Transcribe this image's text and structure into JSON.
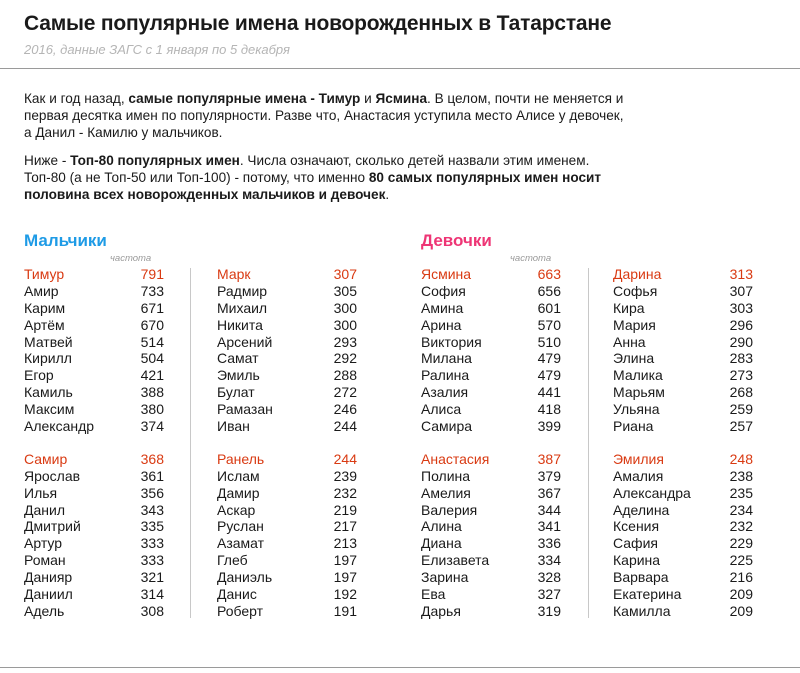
{
  "header": {
    "title": "Самые популярные имена новорожденных в Татарстане",
    "subtitle": "2016, данные ЗАГС с 1 января по 5 декабря"
  },
  "intro": {
    "p1_a": "Как и год назад, ",
    "p1_b": "самые популярные имена - Тимур",
    "p1_c": " и ",
    "p1_d": "Ясмина",
    "p1_e": ". В целом, почти не меняется и первая десятка имен по популярности. Разве что, Анастасия уступила место Алисе у девочек, а Данил -  Камилю у мальчиков.",
    "p2_a": "Ниже - ",
    "p2_b": "Топ-80 популярных имен",
    "p2_c": ". Числа означают, сколько детей назвали этим именем. Топ-80 (а не Топ-50 или Топ-100) - потому, что именно ",
    "p2_d": "80 самых популярных имен носит половина всех новорожденных мальчиков и девочек",
    "p2_e": "."
  },
  "sections": {
    "boys_title": "Мальчики",
    "girls_title": "Девочки",
    "freq_label": "частота"
  },
  "colors": {
    "boys": "#1e9be6",
    "girls": "#ee3575",
    "lead": "#d93a12"
  },
  "boys": {
    "col1": [
      [
        {
          "name": "Тимур",
          "count": "791"
        },
        {
          "name": "Амир",
          "count": "733"
        },
        {
          "name": "Карим",
          "count": "671"
        },
        {
          "name": "Артём",
          "count": "670"
        },
        {
          "name": "Матвей",
          "count": "514"
        },
        {
          "name": "Кирилл",
          "count": "504"
        },
        {
          "name": "Егор",
          "count": "421"
        },
        {
          "name": "Камиль",
          "count": "388"
        },
        {
          "name": "Максим",
          "count": "380"
        },
        {
          "name": "Александр",
          "count": "374"
        }
      ],
      [
        {
          "name": "Самир",
          "count": "368"
        },
        {
          "name": "Ярослав",
          "count": "361"
        },
        {
          "name": "Илья",
          "count": "356"
        },
        {
          "name": "Данил",
          "count": "343"
        },
        {
          "name": "Дмитрий",
          "count": "335"
        },
        {
          "name": "Артур",
          "count": "333"
        },
        {
          "name": "Роман",
          "count": "333"
        },
        {
          "name": "Данияр",
          "count": "321"
        },
        {
          "name": "Даниил",
          "count": "314"
        },
        {
          "name": "Адель",
          "count": "308"
        }
      ]
    ],
    "col2": [
      [
        {
          "name": "Марк",
          "count": "307"
        },
        {
          "name": "Радмир",
          "count": "305"
        },
        {
          "name": "Михаил",
          "count": "300"
        },
        {
          "name": "Никита",
          "count": "300"
        },
        {
          "name": "Арсений",
          "count": "293"
        },
        {
          "name": "Самат",
          "count": "292"
        },
        {
          "name": "Эмиль",
          "count": "288"
        },
        {
          "name": "Булат",
          "count": "272"
        },
        {
          "name": "Рамазан",
          "count": "246"
        },
        {
          "name": "Иван",
          "count": "244"
        }
      ],
      [
        {
          "name": "Ранель",
          "count": "244"
        },
        {
          "name": "Ислам",
          "count": "239"
        },
        {
          "name": "Дамир",
          "count": "232"
        },
        {
          "name": "Аскар",
          "count": "219"
        },
        {
          "name": "Руслан",
          "count": "217"
        },
        {
          "name": "Азамат",
          "count": "213"
        },
        {
          "name": "Глеб",
          "count": "197"
        },
        {
          "name": "Даниэль",
          "count": "197"
        },
        {
          "name": "Данис",
          "count": "192"
        },
        {
          "name": "Роберт",
          "count": "191"
        }
      ]
    ]
  },
  "girls": {
    "col1": [
      [
        {
          "name": "Ясмина",
          "count": "663"
        },
        {
          "name": "София",
          "count": "656"
        },
        {
          "name": "Амина",
          "count": "601"
        },
        {
          "name": "Арина",
          "count": "570"
        },
        {
          "name": "Виктория",
          "count": "510"
        },
        {
          "name": "Милана",
          "count": "479"
        },
        {
          "name": "Ралина",
          "count": "479"
        },
        {
          "name": "Азалия",
          "count": "441"
        },
        {
          "name": "Алиса",
          "count": "418"
        },
        {
          "name": "Самира",
          "count": "399"
        }
      ],
      [
        {
          "name": "Анастасия",
          "count": "387"
        },
        {
          "name": "Полина",
          "count": "379"
        },
        {
          "name": "Амелия",
          "count": "367"
        },
        {
          "name": "Валерия",
          "count": "344"
        },
        {
          "name": "Алина",
          "count": "341"
        },
        {
          "name": "Диана",
          "count": "336"
        },
        {
          "name": "Елизавета",
          "count": "334"
        },
        {
          "name": "Зарина",
          "count": "328"
        },
        {
          "name": "Ева",
          "count": "327"
        },
        {
          "name": "Дарья",
          "count": "319"
        }
      ]
    ],
    "col2": [
      [
        {
          "name": "Дарина",
          "count": "313"
        },
        {
          "name": "Софья",
          "count": "307"
        },
        {
          "name": "Кира",
          "count": "303"
        },
        {
          "name": "Мария",
          "count": "296"
        },
        {
          "name": "Анна",
          "count": "290"
        },
        {
          "name": "Элина",
          "count": "283"
        },
        {
          "name": "Малика",
          "count": "273"
        },
        {
          "name": "Марьям",
          "count": "268"
        },
        {
          "name": "Ульяна",
          "count": "259"
        },
        {
          "name": "Риана",
          "count": "257"
        }
      ],
      [
        {
          "name": "Эмилия",
          "count": "248"
        },
        {
          "name": "Амалия",
          "count": "238"
        },
        {
          "name": "Александра",
          "count": "235"
        },
        {
          "name": "Аделина",
          "count": "234"
        },
        {
          "name": "Ксения",
          "count": "232"
        },
        {
          "name": "Сафия",
          "count": "229"
        },
        {
          "name": "Карина",
          "count": "225"
        },
        {
          "name": "Варвара",
          "count": "216"
        },
        {
          "name": "Екатерина",
          "count": "209"
        },
        {
          "name": "Камилла",
          "count": "209"
        }
      ]
    ]
  }
}
